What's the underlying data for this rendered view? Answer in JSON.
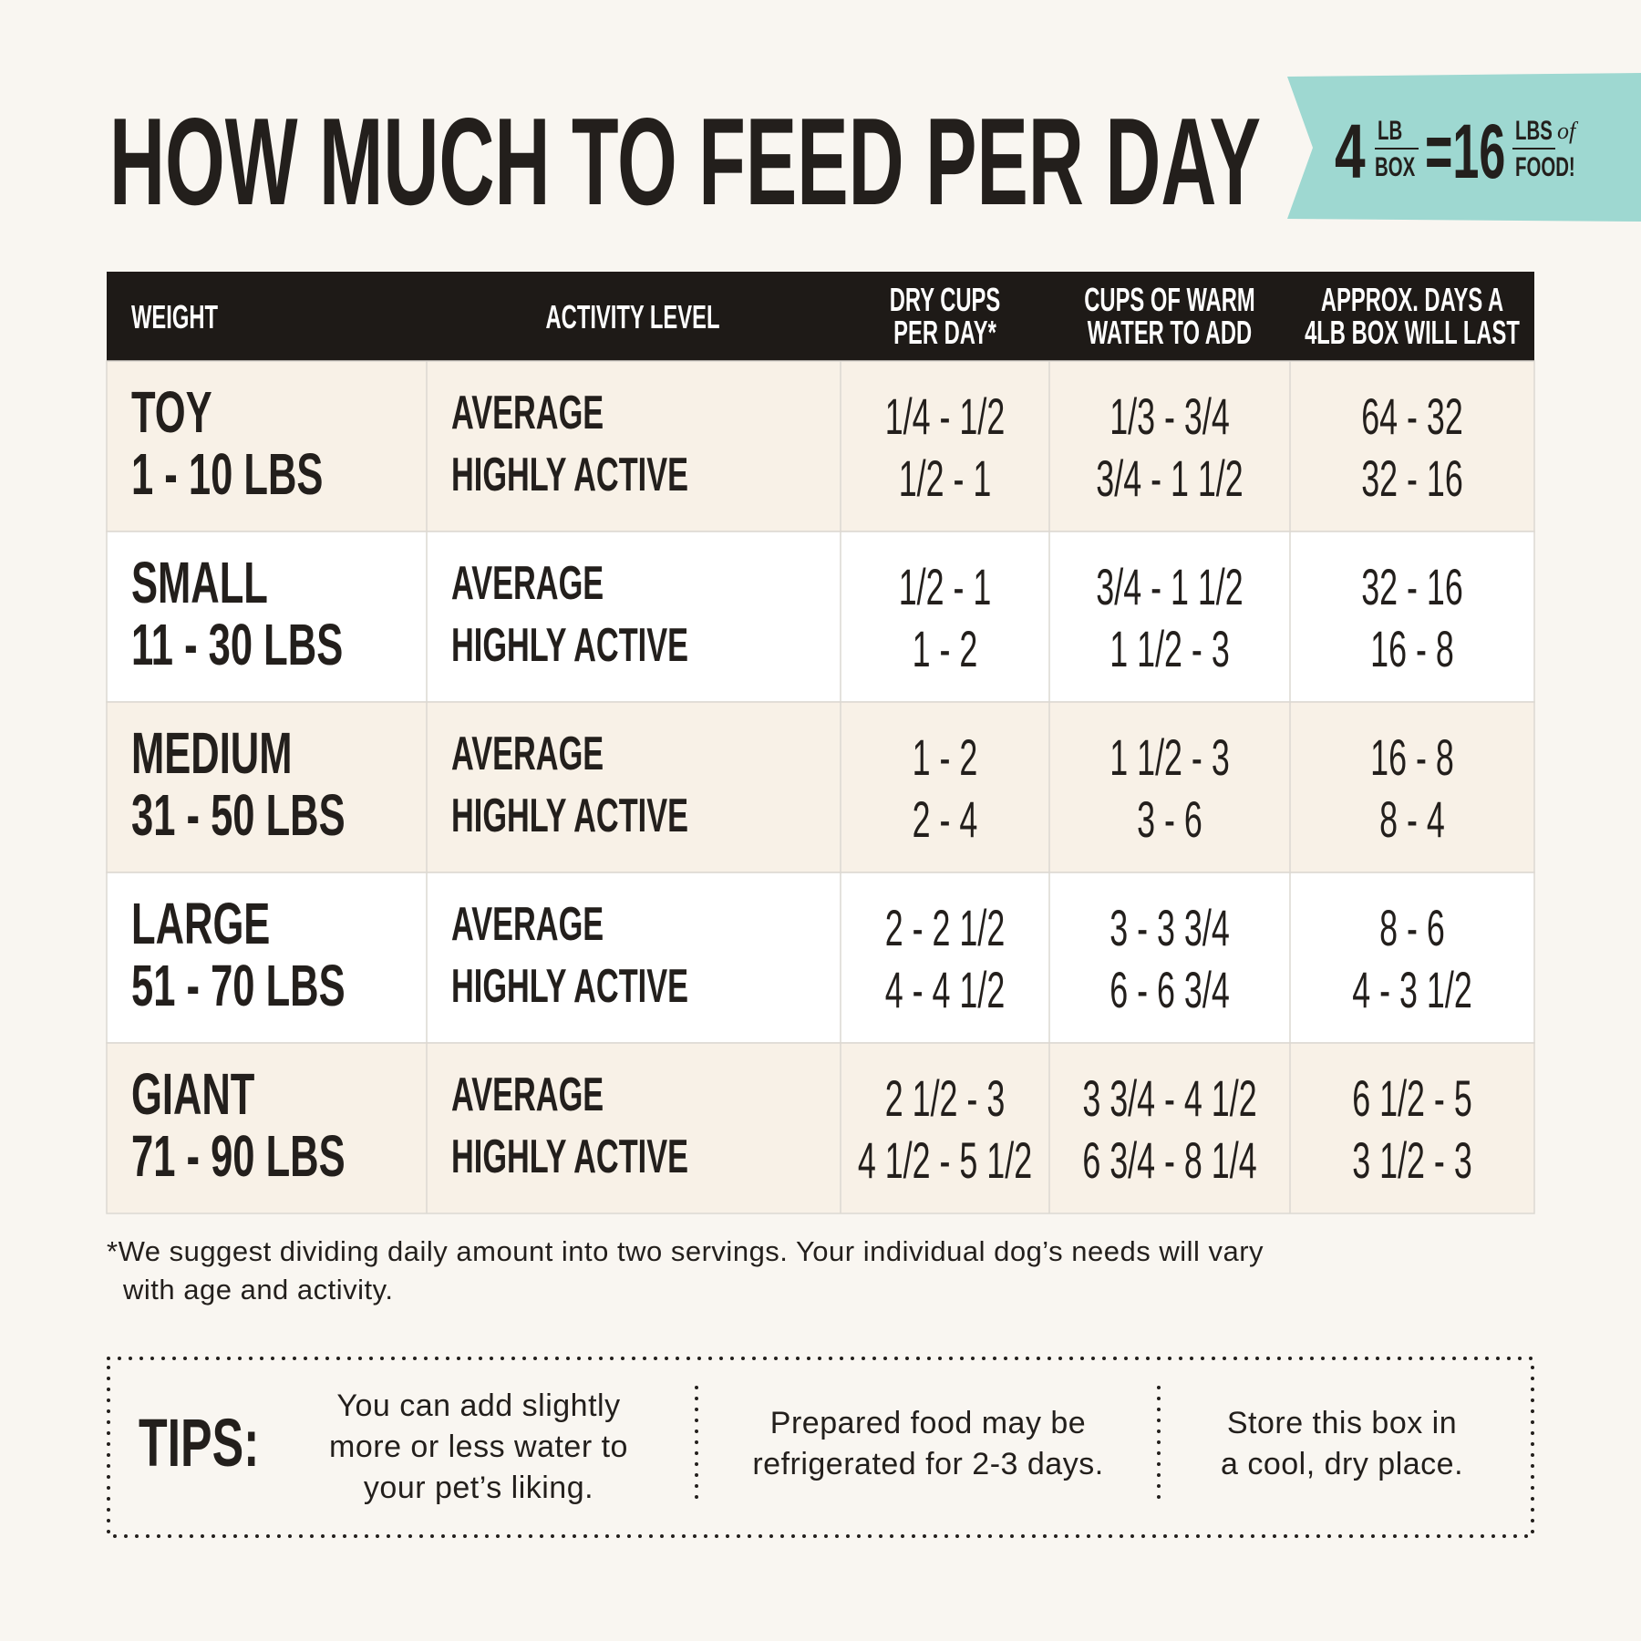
{
  "title": "HOW MUCH TO FEED PER DAY",
  "badge": {
    "box_weight": "4",
    "box_unit": [
      "LB",
      "BOX"
    ],
    "equals": "=16",
    "food_unit": [
      "LBS",
      "FOOD!"
    ],
    "of": "of"
  },
  "table": {
    "headers": [
      [
        "WEIGHT"
      ],
      [
        "ACTIVITY LEVEL"
      ],
      [
        "DRY CUPS",
        "PER DAY*"
      ],
      [
        "CUPS OF WARM",
        "WATER TO ADD"
      ],
      [
        "APPROX. DAYS A",
        "4LB BOX WILL LAST"
      ]
    ],
    "rows": [
      {
        "size": "TOY",
        "weight": "1 - 10 LBS",
        "activity": [
          "AVERAGE",
          "HIGHLY ACTIVE"
        ],
        "dry_cups": [
          "1/4 - 1/2",
          "1/2 - 1"
        ],
        "water": [
          "1/3 - 3/4",
          "3/4 - 1 1/2"
        ],
        "days": [
          "64 - 32",
          "32 - 16"
        ]
      },
      {
        "size": "SMALL",
        "weight": "11 - 30 LBS",
        "activity": [
          "AVERAGE",
          "HIGHLY ACTIVE"
        ],
        "dry_cups": [
          "1/2 - 1",
          "1 - 2"
        ],
        "water": [
          "3/4 - 1 1/2",
          "1 1/2 - 3"
        ],
        "days": [
          "32 - 16",
          "16 - 8"
        ]
      },
      {
        "size": "MEDIUM",
        "weight": "31 - 50 LBS",
        "activity": [
          "AVERAGE",
          "HIGHLY ACTIVE"
        ],
        "dry_cups": [
          "1 - 2",
          "2 - 4"
        ],
        "water": [
          "1 1/2 - 3",
          "3 - 6"
        ],
        "days": [
          "16 - 8",
          "8 - 4"
        ]
      },
      {
        "size": "LARGE",
        "weight": "51 - 70 LBS",
        "activity": [
          "AVERAGE",
          "HIGHLY ACTIVE"
        ],
        "dry_cups": [
          "2 - 2 1/2",
          "4 - 4 1/2"
        ],
        "water": [
          "3 - 3 3/4",
          "6 - 6 3/4"
        ],
        "days": [
          "8 - 6",
          "4 - 3 1/2"
        ]
      },
      {
        "size": "GIANT",
        "weight": "71 - 90 LBS",
        "activity": [
          "AVERAGE",
          "HIGHLY ACTIVE"
        ],
        "dry_cups": [
          "2 1/2 - 3",
          "4 1/2 - 5 1/2"
        ],
        "water": [
          "3 3/4 - 4 1/2",
          "6 3/4 - 8 1/4"
        ],
        "days": [
          "6 1/2 - 5",
          "3 1/2 - 3"
        ]
      }
    ]
  },
  "footnote": [
    "*We suggest dividing daily amount into two servings. Your individual dog’s needs will vary",
    "with age and activity."
  ],
  "tips": {
    "label": "TIPS:",
    "items": [
      [
        "You can add slightly",
        "more or less water to",
        "your pet’s liking."
      ],
      [
        "Prepared food may be",
        "refrigerated for 2-3 days."
      ],
      [
        "Store this box in",
        "a cool, dry place."
      ]
    ]
  }
}
